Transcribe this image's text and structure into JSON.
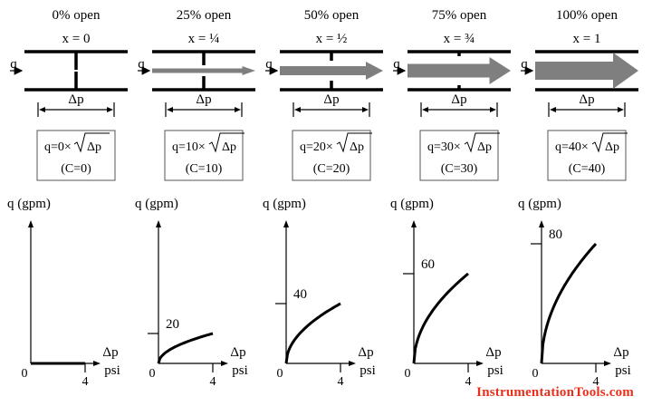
{
  "panels": [
    {
      "title": "0% open",
      "x_label": "x = 0",
      "opening": 0.0,
      "equation": "q=0×",
      "c_label": "(C=0)",
      "C": 0,
      "curve": {
        "q_at_4": 0,
        "y_tick_label": ""
      }
    },
    {
      "title": "25% open",
      "x_label": "x = ¼",
      "opening": 0.25,
      "equation": "q=10×",
      "c_label": "(C=10)",
      "C": 10,
      "curve": {
        "q_at_4": 20,
        "y_tick_label": "20"
      }
    },
    {
      "title": "50% open",
      "x_label": "x = ½",
      "opening": 0.5,
      "equation": "q=20×",
      "c_label": "(C=20)",
      "C": 20,
      "curve": {
        "q_at_4": 40,
        "y_tick_label": "40"
      }
    },
    {
      "title": "75% open",
      "x_label": "x = ¾",
      "opening": 0.75,
      "equation": "q=30×",
      "c_label": "(C=30)",
      "C": 30,
      "curve": {
        "q_at_4": 60,
        "y_tick_label": "60"
      }
    },
    {
      "title": "100% open",
      "x_label": "x = 1",
      "opening": 1.0,
      "equation": "q=40×",
      "c_label": "(C=40)",
      "C": 40,
      "curve": {
        "q_at_4": 80,
        "y_tick_label": "80"
      }
    }
  ],
  "labels": {
    "flow_symbol": "q",
    "delta_p": "Δp",
    "sqrt_arg": "Δp",
    "y_axis": "q (gpm)",
    "x_axis_top": "Δp",
    "x_axis_bottom": "psi",
    "origin": "0",
    "x_tick": "4"
  },
  "watermark": "InstrumentationTools.com"
}
